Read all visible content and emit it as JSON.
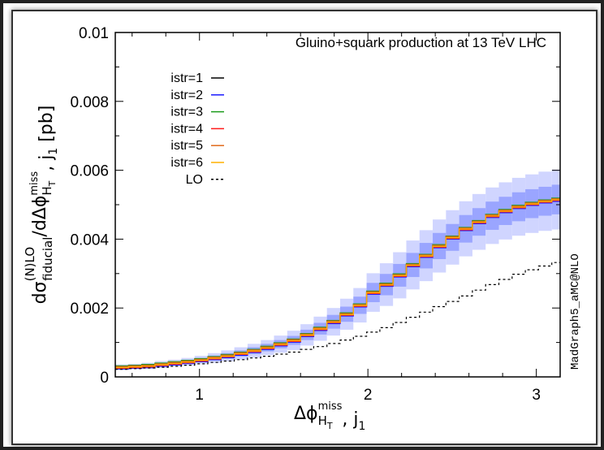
{
  "chart_data": {
    "type": "line",
    "title": "Gluino+squark production at 13 TeV LHC",
    "watermark": "MadGraph5_aMC@NLO",
    "xlim": [
      0.5,
      3.1416
    ],
    "ylim": [
      0,
      0.01
    ],
    "x_ticks": [
      "1",
      "2",
      "3"
    ],
    "y_ticks": [
      "0",
      "0.002",
      "0.004",
      "0.006",
      "0.008",
      "0.01"
    ],
    "ylabel": {
      "pre": "dσ",
      "sup1": "(N)LO",
      "sub1": "fiducial",
      "mid": "/dΔϕ",
      "sub2": "H",
      "sub2b": "T",
      "sup2": "miss",
      "mid2": ", j",
      "sub3": "1",
      "unit": " [pb]"
    },
    "xlabel": {
      "pre": "Δϕ",
      "sub1": "H",
      "sub1b": "T",
      "sup1": "miss",
      "mid": ", j",
      "sub2": "1"
    },
    "x": [
      0.5,
      0.5785,
      0.6571,
      0.7356,
      0.8142,
      0.8927,
      0.9712,
      1.0498,
      1.1283,
      1.2069,
      1.2854,
      1.364,
      1.4425,
      1.521,
      1.5996,
      1.6781,
      1.7567,
      1.8352,
      1.9137,
      1.9923,
      2.0708,
      2.1494,
      2.2279,
      2.3064,
      2.385,
      2.4635,
      2.5421,
      2.6206,
      2.6991,
      2.7777,
      2.8562,
      2.9348,
      3.0133,
      3.0919
    ],
    "nlo": [
      0.00028,
      0.0003,
      0.00032,
      0.00036,
      0.0004,
      0.00044,
      0.00049,
      0.00055,
      0.00061,
      0.00068,
      0.00076,
      0.00085,
      0.00095,
      0.00106,
      0.00122,
      0.0014,
      0.0016,
      0.00182,
      0.00208,
      0.00245,
      0.00268,
      0.00295,
      0.00325,
      0.00352,
      0.0038,
      0.00405,
      0.0043,
      0.0045,
      0.00468,
      0.00482,
      0.00494,
      0.00503,
      0.0051,
      0.00515
    ],
    "band_inner": [
      4e-05,
      4e-05,
      4e-05,
      5e-05,
      5e-05,
      6e-05,
      6e-05,
      7e-05,
      8e-05,
      9e-05,
      0.0001,
      0.00011,
      0.00012,
      0.00013,
      0.00015,
      0.00017,
      0.0002,
      0.00022,
      0.00025,
      0.00028,
      0.00031,
      0.00033,
      0.00035,
      0.00037,
      0.00038,
      0.00039,
      0.0004,
      0.0004,
      0.00041,
      0.00041,
      0.00042,
      0.00042,
      0.00042,
      0.00043
    ],
    "band_outer": [
      8e-05,
      8e-05,
      9e-05,
      0.0001,
      0.0001,
      0.00011,
      0.00012,
      0.00014,
      0.00016,
      0.00018,
      0.0002,
      0.00022,
      0.00025,
      0.00028,
      0.00031,
      0.00035,
      0.0004,
      0.00045,
      0.0005,
      0.00056,
      0.00062,
      0.00067,
      0.00071,
      0.00074,
      0.00077,
      0.00079,
      0.0008,
      0.00081,
      0.00082,
      0.00083,
      0.00084,
      0.00085,
      0.00086,
      0.00087
    ],
    "lo": [
      0.00022,
      0.00024,
      0.00026,
      0.00028,
      0.00031,
      0.00034,
      0.00038,
      0.00042,
      0.00046,
      0.0005,
      0.00055,
      0.0006,
      0.00066,
      0.00072,
      0.0008,
      0.00088,
      0.00097,
      0.00107,
      0.00118,
      0.0013,
      0.00143,
      0.00158,
      0.00173,
      0.00188,
      0.00204,
      0.00219,
      0.00235,
      0.00252,
      0.00268,
      0.00283,
      0.00298,
      0.00311,
      0.00322,
      0.00332
    ],
    "series": [
      {
        "name": "istr=1",
        "color": "#000000",
        "offset": 0.0
      },
      {
        "name": "istr=2",
        "color": "#1a1aff",
        "offset": -5e-05
      },
      {
        "name": "istr=3",
        "color": "#1a9a1a",
        "offset": 4e-05
      },
      {
        "name": "istr=4",
        "color": "#ff1a1a",
        "offset": -3e-05
      },
      {
        "name": "istr=5",
        "color": "#e06a1a",
        "offset": 2e-05
      },
      {
        "name": "istr=6",
        "color": "#ffb000",
        "offset": -1e-05
      },
      {
        "name": "LO",
        "color": "#000000",
        "dashed": true
      }
    ],
    "band_colors": {
      "inner": "#9aa5ff",
      "outer": "#d0d5ff"
    },
    "legend_position": "top-left",
    "grid": false
  }
}
